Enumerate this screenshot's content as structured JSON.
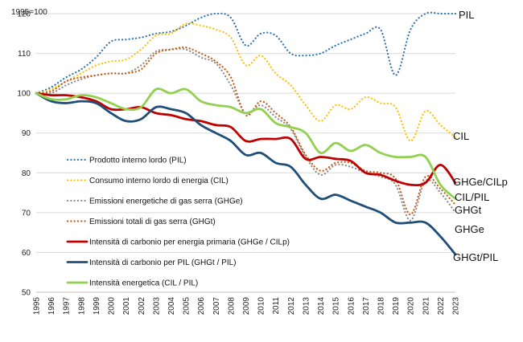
{
  "chart_data": {
    "type": "line",
    "note": "1995=100",
    "ylim": [
      50,
      120
    ],
    "yticks": [
      50,
      60,
      70,
      80,
      90,
      100,
      110,
      120
    ],
    "x": [
      1995,
      1996,
      1997,
      1998,
      1999,
      2000,
      2001,
      2002,
      2003,
      2004,
      2005,
      2006,
      2007,
      2008,
      2009,
      2010,
      2011,
      2012,
      2013,
      2014,
      2015,
      2016,
      2017,
      2018,
      2019,
      2020,
      2021,
      2022,
      2023
    ],
    "series": [
      {
        "name": "Prodotto interno lordo (PIL)",
        "end_label": "PIL",
        "color": "#2e75b6",
        "dash": "dotted",
        "values": [
          100,
          101.5,
          104,
          106,
          109,
          113,
          113.5,
          114,
          115,
          115.5,
          117,
          119,
          120,
          119,
          112,
          115,
          114.5,
          110,
          109.5,
          110,
          112,
          113.5,
          115,
          116,
          104.5,
          116,
          120,
          120,
          120
        ]
      },
      {
        "name": "Consumo interno lordo di energia (CIL)",
        "end_label": "CIL",
        "color": "#ffc000",
        "dash": "dotted",
        "values": [
          100,
          101,
          103,
          105,
          107,
          108,
          108.5,
          111,
          114.5,
          115,
          117.5,
          117,
          116,
          114,
          107,
          109.5,
          105,
          102,
          97,
          93,
          97,
          96,
          99,
          97.5,
          96.5,
          88,
          95.5,
          92,
          89
        ]
      },
      {
        "name": "Emissioni energetiche di gas serra (GHGe)",
        "end_label": "GHGe",
        "color": "#8c8c8c",
        "dash": "dotted",
        "values": [
          100,
          100,
          102,
          103.5,
          104.5,
          105,
          105,
          107,
          110.5,
          111,
          111,
          109,
          107.5,
          102,
          95,
          97,
          94,
          91,
          84,
          79.5,
          82,
          81.5,
          80,
          79,
          77,
          68,
          78,
          75,
          70
        ]
      },
      {
        "name": "Emissioni totali di gas serra (GHGt)",
        "end_label": "GHGt",
        "color": "#c55a11",
        "dash": "dotted",
        "values": [
          100,
          100.5,
          103,
          104,
          104.5,
          105,
          105,
          106,
          110,
          111,
          111.5,
          110,
          108,
          104,
          94.5,
          98,
          95,
          91.5,
          84.5,
          80.5,
          82.5,
          82.5,
          80.5,
          80,
          78.5,
          69.5,
          79,
          76,
          72
        ]
      },
      {
        "name": "Intensità di carbonio per energia primaria (GHGe / CILp)",
        "end_label": "GHGe/CILp",
        "color": "#c00000",
        "dash": "solid",
        "values": [
          100,
          99.5,
          99.5,
          99,
          98,
          96,
          96,
          96.5,
          95,
          94.5,
          93.5,
          93,
          92,
          91.5,
          88,
          88.5,
          88.5,
          88.5,
          83.5,
          84,
          83.5,
          83,
          80,
          79.5,
          78,
          77,
          77.5,
          82,
          77.5
        ]
      },
      {
        "name": "Intensità di carbonio per PIL (GHGt / PIL)",
        "end_label": "GHGt/PIL",
        "color": "#1f4e79",
        "dash": "solid",
        "values": [
          100,
          98,
          97.5,
          98,
          97.5,
          95,
          93,
          93.5,
          96.5,
          96,
          95,
          92,
          90,
          88,
          84.5,
          85,
          82.5,
          81.5,
          77,
          73.5,
          74.5,
          73,
          71.5,
          70,
          67.5,
          67.5,
          67.5,
          64,
          59.5
        ]
      },
      {
        "name": "Intensità energetica (CIL / PIL)",
        "end_label": "CIL/PIL",
        "color": "#92d050",
        "dash": "solid",
        "values": [
          100,
          98.5,
          98.5,
          99.5,
          99,
          97.5,
          96,
          96.5,
          101,
          100,
          101,
          98,
          97,
          96.5,
          95,
          96,
          92.5,
          91.5,
          90,
          85,
          87.5,
          85.5,
          87,
          85,
          84,
          84,
          84,
          77,
          73.5
        ]
      }
    ]
  }
}
